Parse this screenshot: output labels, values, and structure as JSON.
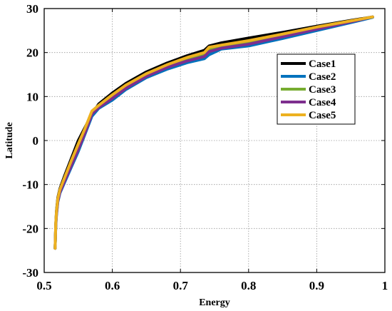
{
  "chart_data": {
    "type": "line",
    "title": "",
    "xlabel": "Energy",
    "ylabel": "Latitude",
    "xlim": [
      0.5,
      1.0
    ],
    "ylim": [
      -30,
      30
    ],
    "xticks": [
      0.5,
      0.6,
      0.7,
      0.8,
      0.9,
      1.0
    ],
    "xtick_labels": [
      "0.5",
      "0.6",
      "0.7",
      "0.8",
      "0.9",
      "1"
    ],
    "yticks": [
      -30,
      -20,
      -10,
      0,
      10,
      20,
      30
    ],
    "ytick_labels": [
      "-30",
      "-20",
      "-10",
      "0",
      "10",
      "20",
      "30"
    ],
    "grid": true,
    "legend_position": "top-right",
    "series": [
      {
        "name": "Case1",
        "color": "#000000",
        "x": [
          0.516,
          0.517,
          0.518,
          0.52,
          0.523,
          0.53,
          0.54,
          0.55,
          0.56,
          0.57,
          0.58,
          0.6,
          0.62,
          0.65,
          0.68,
          0.71,
          0.735,
          0.742,
          0.76,
          0.8,
          0.85,
          0.9,
          0.95,
          0.982
        ],
        "y": [
          -24.5,
          -19,
          -16,
          -13,
          -11,
          -8,
          -4,
          0,
          3,
          6,
          8.3,
          10.8,
          13,
          15.6,
          17.6,
          19.3,
          20.5,
          21.5,
          22.2,
          23.3,
          24.6,
          26,
          27.3,
          28.1
        ]
      },
      {
        "name": "Case2",
        "color": "#0072BD",
        "x": [
          0.516,
          0.517,
          0.518,
          0.52,
          0.523,
          0.53,
          0.54,
          0.55,
          0.56,
          0.57,
          0.58,
          0.6,
          0.62,
          0.65,
          0.68,
          0.71,
          0.735,
          0.742,
          0.76,
          0.8,
          0.85,
          0.9,
          0.95,
          0.982
        ],
        "y": [
          -24.5,
          -19.5,
          -17,
          -14,
          -12,
          -9.5,
          -6,
          -2.5,
          1.5,
          5.5,
          7.3,
          9.2,
          11.6,
          14.3,
          16.2,
          17.7,
          18.6,
          19.5,
          20.8,
          21.5,
          23.2,
          25,
          26.8,
          28
        ]
      },
      {
        "name": "Case3",
        "color": "#77AC30",
        "x": [
          0.516,
          0.517,
          0.518,
          0.52,
          0.523,
          0.53,
          0.54,
          0.55,
          0.56,
          0.57,
          0.58,
          0.6,
          0.62,
          0.65,
          0.68,
          0.71,
          0.735,
          0.742,
          0.76,
          0.8,
          0.85,
          0.9,
          0.95,
          0.982
        ],
        "y": [
          -24.5,
          -19,
          -16.5,
          -13.5,
          -11.5,
          -8.7,
          -5,
          -1.3,
          2.3,
          6.5,
          7.8,
          10,
          12.2,
          14.9,
          16.9,
          18.5,
          19.5,
          20.7,
          21.3,
          22.3,
          23.9,
          25.6,
          27.1,
          28.1
        ]
      },
      {
        "name": "Case4",
        "color": "#7E2F8E",
        "x": [
          0.516,
          0.517,
          0.518,
          0.52,
          0.523,
          0.53,
          0.54,
          0.55,
          0.56,
          0.57,
          0.58,
          0.6,
          0.62,
          0.65,
          0.68,
          0.71,
          0.735,
          0.742,
          0.76,
          0.8,
          0.85,
          0.9,
          0.95,
          0.982
        ],
        "y": [
          -24.5,
          -19.2,
          -16.8,
          -13.8,
          -11.8,
          -9.2,
          -5.6,
          -2,
          1.8,
          6,
          7.5,
          9.6,
          11.9,
          14.6,
          16.6,
          18.1,
          19.1,
          20.2,
          21,
          21.9,
          23.6,
          25.3,
          27,
          28.1
        ]
      },
      {
        "name": "Case5",
        "color": "#EDB120",
        "x": [
          0.516,
          0.517,
          0.518,
          0.52,
          0.523,
          0.53,
          0.54,
          0.55,
          0.56,
          0.57,
          0.58,
          0.6,
          0.62,
          0.65,
          0.68,
          0.71,
          0.735,
          0.742,
          0.76,
          0.8,
          0.85,
          0.9,
          0.95,
          0.982
        ],
        "y": [
          -24.5,
          -18.8,
          -16.2,
          -13.2,
          -11.2,
          -8.4,
          -4.5,
          -0.8,
          2.8,
          6.7,
          8,
          10.4,
          12.6,
          15.2,
          17.2,
          18.9,
          20,
          21.2,
          21.7,
          22.7,
          24.2,
          25.8,
          27.2,
          28.1
        ]
      }
    ]
  }
}
